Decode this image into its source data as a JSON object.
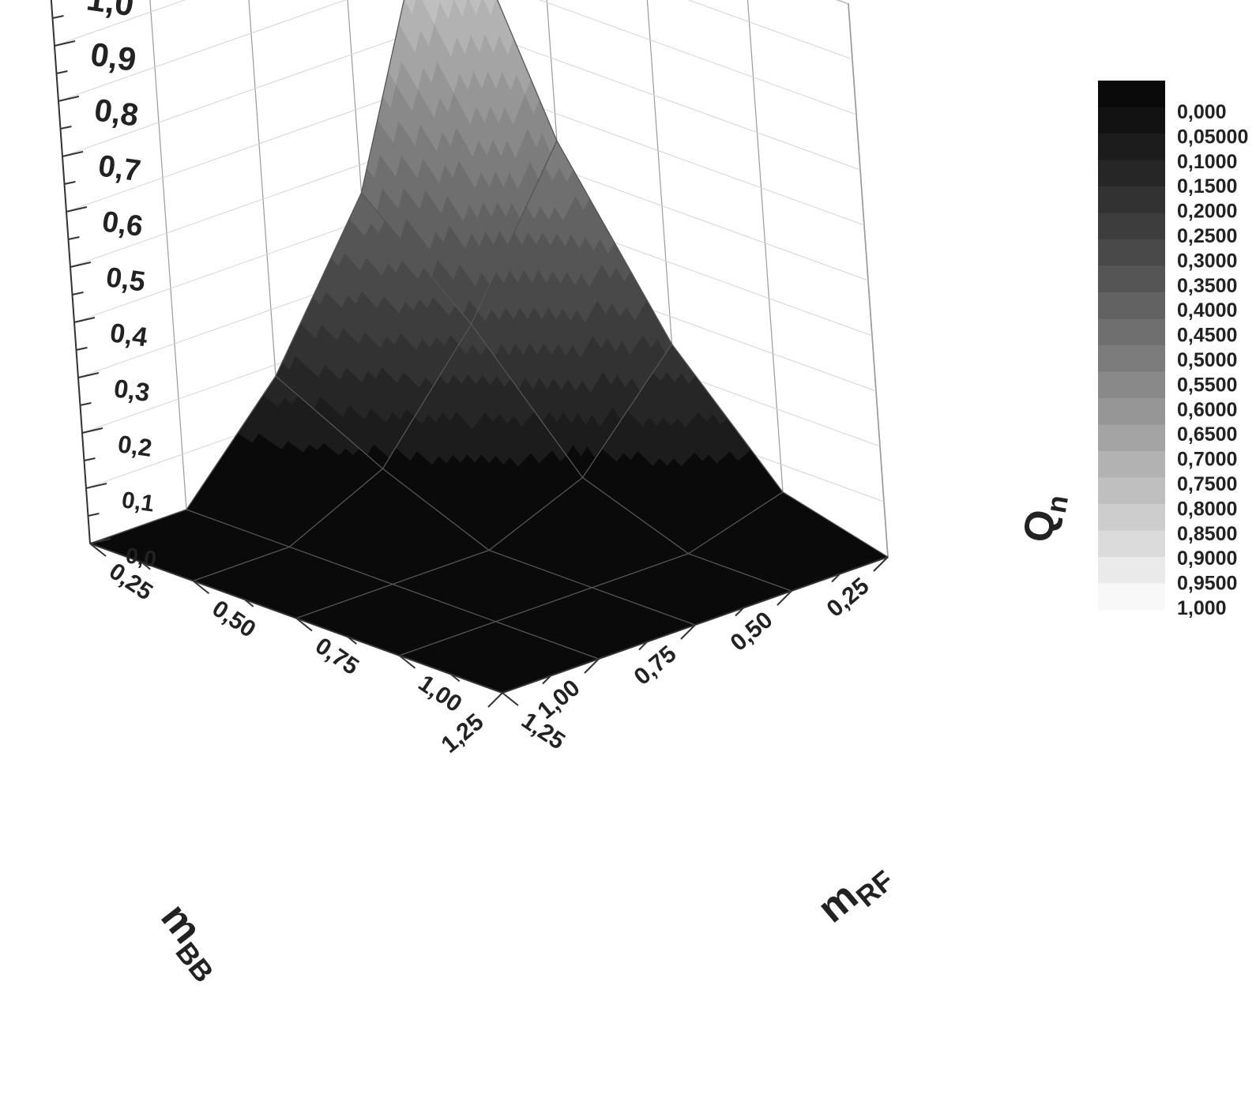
{
  "chart_data": {
    "type": "surface3d",
    "axes": {
      "x": {
        "title": "m",
        "subscript": "BB",
        "ticks": [
          "0,25",
          "0,50",
          "0,75",
          "1,00",
          "1,25"
        ],
        "range": [
          0.25,
          1.25
        ]
      },
      "y": {
        "title": "m",
        "subscript": "RF",
        "ticks": [
          "0,25",
          "0,50",
          "0,75",
          "1,00",
          "1,25"
        ],
        "range": [
          0.25,
          1.25
        ]
      },
      "z": {
        "title": "Q",
        "subscript": "n",
        "ticks": [
          "0,0",
          "0,1",
          "0,2",
          "0,3",
          "0,4",
          "0,5",
          "0,6",
          "0,7",
          "0,8",
          "0,9",
          "1,0"
        ],
        "range": [
          0.0,
          1.0
        ]
      }
    },
    "grid_x": [
      0.25,
      0.5,
      0.75,
      1.0,
      1.25
    ],
    "grid_y": [
      0.25,
      0.5,
      0.75,
      1.0,
      1.25
    ],
    "z": [
      [
        1.0,
        0.45,
        0.18,
        0.0,
        0.0
      ],
      [
        0.55,
        0.28,
        0.08,
        0.0,
        0.0
      ],
      [
        0.25,
        0.07,
        0.0,
        0.0,
        0.0
      ],
      [
        0.05,
        0.0,
        0.0,
        0.0,
        0.0
      ],
      [
        0.0,
        0.0,
        0.0,
        0.0,
        0.0
      ]
    ],
    "contour_levels": [
      0.1,
      0.15,
      0.2,
      0.25,
      0.3,
      0.35,
      0.4,
      0.45,
      0.5,
      0.55,
      0.6,
      0.65,
      0.7,
      0.75,
      0.8,
      0.85,
      0.9,
      0.95
    ],
    "colormap": {
      "low": "#0a0a0a",
      "high": "#f8f8f8"
    },
    "legend": {
      "position": "right",
      "labels": [
        "0,000",
        "0,05000",
        "0,1000",
        "0,1500",
        "0,2000",
        "0,2500",
        "0,3000",
        "0,3500",
        "0,4000",
        "0,4500",
        "0,5000",
        "0,5500",
        "0,6000",
        "0,6500",
        "0,7000",
        "0,7500",
        "0,8000",
        "0,8500",
        "0,9000",
        "0,9500",
        "1,000"
      ]
    },
    "grid": true
  }
}
